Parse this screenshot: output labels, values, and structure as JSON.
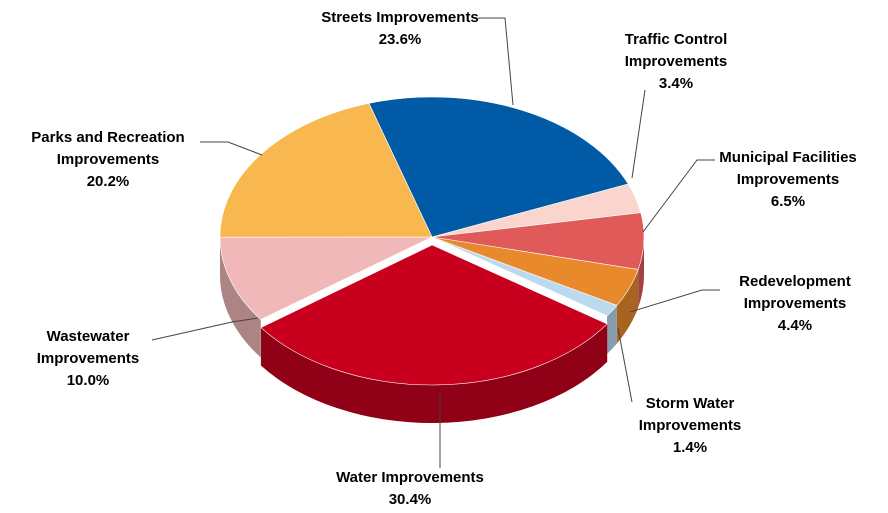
{
  "chart_data": {
    "type": "pie",
    "categories": [
      [
        "Streets Improvements"
      ],
      [
        "Traffic Control",
        "Improvements"
      ],
      [
        "Municipal Facilities",
        "Improvements"
      ],
      [
        "Redevelopment",
        "Improvements"
      ],
      [
        "Storm Water",
        "Improvements"
      ],
      [
        "Water Improvements"
      ],
      [
        "Wastewater",
        "Improvements"
      ],
      [
        "Parks and Recreation",
        "Improvements"
      ]
    ],
    "values": [
      23.6,
      3.4,
      6.5,
      4.4,
      1.4,
      30.4,
      10.0,
      20.2
    ],
    "value_labels": [
      "23.6%",
      "3.4%",
      "6.5%",
      "4.4%",
      "1.4%",
      "30.4%",
      "10.0%",
      "20.2%"
    ],
    "colors": [
      "#005aa5",
      "#f9d5cd",
      "#e05a5a",
      "#e8892b",
      "#bcd9f0",
      "#c8001e",
      "#f0b8b8",
      "#f9b84f"
    ]
  }
}
